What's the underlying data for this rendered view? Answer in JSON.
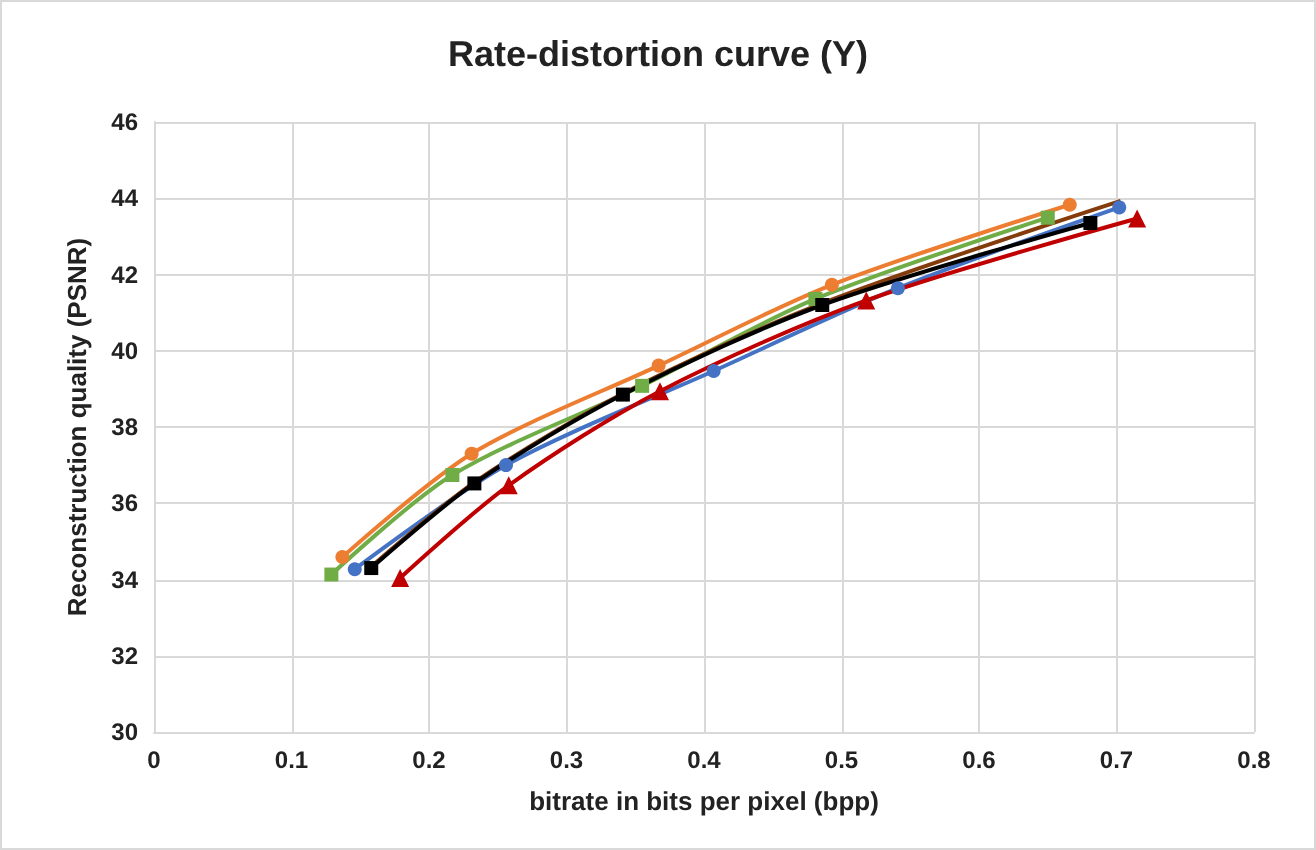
{
  "chart_data": {
    "type": "line",
    "title": "Rate-distortion curve (Y)",
    "xlabel": "bitrate in bits per pixel (bpp)",
    "ylabel": "Reconstruction quality (PSNR)",
    "xlim": [
      0,
      0.8
    ],
    "xticks": [
      0,
      0.1,
      0.2,
      0.3,
      0.4,
      0.5,
      0.6,
      0.7,
      0.8
    ],
    "ylim": [
      30,
      46
    ],
    "yticks": [
      30,
      32,
      34,
      36,
      38,
      40,
      42,
      44,
      46
    ],
    "grid": true,
    "series": [
      {
        "color": "#4472c4",
        "marker": "circle",
        "x": [
          0.146,
          0.256,
          0.407,
          0.541,
          0.702
        ],
        "values": [
          34.27,
          37.0,
          39.47,
          41.64,
          43.76
        ]
      },
      {
        "color": "#ed7d31",
        "marker": "circle",
        "x": [
          0.137,
          0.231,
          0.367,
          0.493,
          0.666
        ],
        "values": [
          34.59,
          37.3,
          39.61,
          41.73,
          43.83
        ]
      },
      {
        "color": "#70ad47",
        "marker": "square",
        "x": [
          0.129,
          0.217,
          0.355,
          0.481,
          0.65
        ],
        "values": [
          34.13,
          36.74,
          39.08,
          41.36,
          43.49
        ]
      },
      {
        "color": "#c00000",
        "marker": "triangle",
        "x": [
          0.179,
          0.258,
          0.368,
          0.518,
          0.715
        ],
        "values": [
          34.04,
          36.47,
          38.94,
          41.32,
          43.47
        ]
      },
      {
        "color": "#843c0c",
        "marker": "none",
        "x": [
          0.16,
          0.235,
          0.345,
          0.49,
          0.703
        ],
        "values": [
          34.4,
          36.6,
          38.95,
          41.3,
          43.93
        ]
      },
      {
        "color": "#000000",
        "marker": "square",
        "x": [
          0.158,
          0.233,
          0.341,
          0.486,
          0.681
        ],
        "values": [
          34.3,
          36.52,
          38.85,
          41.2,
          43.35
        ]
      }
    ]
  }
}
